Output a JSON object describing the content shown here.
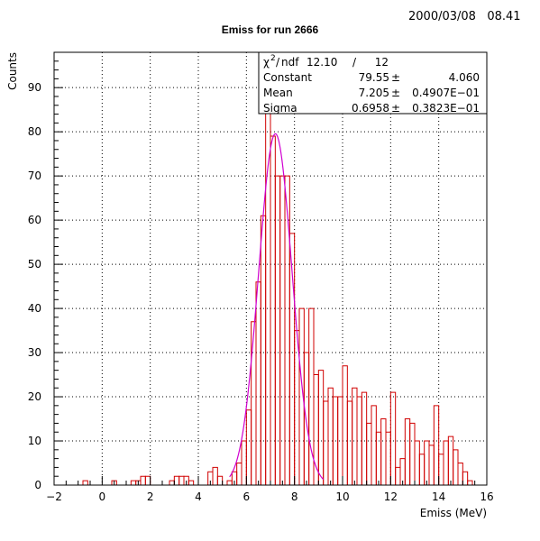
{
  "header": {
    "date": "2000/03/08   08.41"
  },
  "chart_data": {
    "type": "histogram",
    "title": "Emiss for run 2666",
    "xlabel": "Emiss (MeV)",
    "ylabel": "Counts",
    "xlim": [
      -2,
      16
    ],
    "ylim": [
      0,
      98
    ],
    "xticks": [
      "−2",
      "0",
      "2",
      "4",
      "6",
      "8",
      "10",
      "12",
      "14",
      "16"
    ],
    "yticks": [
      "0",
      "10",
      "20",
      "30",
      "40",
      "50",
      "60",
      "70",
      "80",
      "90"
    ],
    "grid": true,
    "bin_width": 0.2,
    "series": [
      {
        "kind": "histogram",
        "color": "#d00000",
        "bins": [
          [
            -0.8,
            1
          ],
          [
            0.4,
            1
          ],
          [
            1.2,
            1
          ],
          [
            1.4,
            1
          ],
          [
            1.6,
            2
          ],
          [
            1.8,
            2
          ],
          [
            2.8,
            1
          ],
          [
            3.0,
            2
          ],
          [
            3.2,
            2
          ],
          [
            3.4,
            2
          ],
          [
            3.6,
            1
          ],
          [
            4.4,
            3
          ],
          [
            4.6,
            4
          ],
          [
            4.8,
            2
          ],
          [
            5.2,
            1
          ],
          [
            5.4,
            3
          ],
          [
            5.6,
            5
          ],
          [
            5.8,
            10
          ],
          [
            6.0,
            17
          ],
          [
            6.2,
            37
          ],
          [
            6.4,
            46
          ],
          [
            6.6,
            61
          ],
          [
            6.8,
            88
          ],
          [
            7.0,
            79
          ],
          [
            7.2,
            70
          ],
          [
            7.4,
            70
          ],
          [
            7.6,
            70
          ],
          [
            7.8,
            57
          ],
          [
            8.0,
            35
          ],
          [
            8.2,
            40
          ],
          [
            8.4,
            30
          ],
          [
            8.6,
            40
          ],
          [
            8.8,
            25
          ],
          [
            9.0,
            26
          ],
          [
            9.2,
            19
          ],
          [
            9.4,
            22
          ],
          [
            9.6,
            20
          ],
          [
            9.8,
            20
          ],
          [
            10.0,
            27
          ],
          [
            10.2,
            19
          ],
          [
            10.4,
            22
          ],
          [
            10.6,
            20
          ],
          [
            10.8,
            21
          ],
          [
            11.0,
            14
          ],
          [
            11.2,
            18
          ],
          [
            11.4,
            12
          ],
          [
            11.6,
            15
          ],
          [
            11.8,
            12
          ],
          [
            12.0,
            21
          ],
          [
            12.2,
            4
          ],
          [
            12.4,
            6
          ],
          [
            12.6,
            15
          ],
          [
            12.8,
            14
          ],
          [
            13.0,
            10
          ],
          [
            13.2,
            7
          ],
          [
            13.4,
            10
          ],
          [
            13.6,
            9
          ],
          [
            13.8,
            18
          ],
          [
            14.0,
            7
          ],
          [
            14.2,
            10
          ],
          [
            14.4,
            11
          ],
          [
            14.6,
            8
          ],
          [
            14.8,
            5
          ],
          [
            15.0,
            3
          ],
          [
            15.2,
            1
          ]
        ]
      },
      {
        "kind": "gaussian-fit",
        "color": "#d000d0",
        "constant": 79.55,
        "mean": 7.205,
        "sigma": 0.6958,
        "range": [
          5.3,
          9.2
        ]
      }
    ],
    "stats_box": {
      "chi_label": "ndf",
      "chi_value": "12.10",
      "chi_sep": "/",
      "ndf_value": "12",
      "rows": [
        {
          "label": "Constant",
          "value": "79.55",
          "pm": "±",
          "error": "4.060"
        },
        {
          "label": "Mean",
          "value": "7.205",
          "pm": "±",
          "error": "0.4907E−01"
        },
        {
          "label": "Sigma",
          "value": "0.6958",
          "pm": "±",
          "error": "0.3823E−01"
        }
      ]
    }
  }
}
